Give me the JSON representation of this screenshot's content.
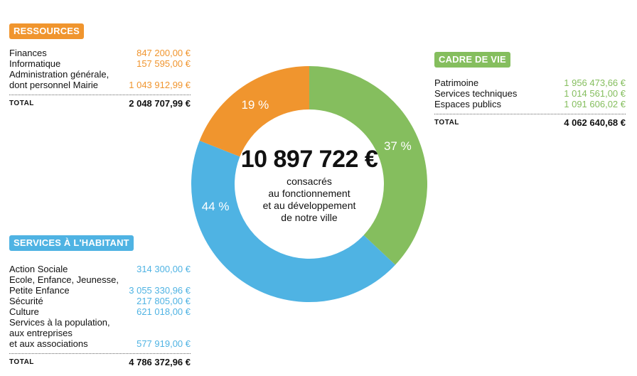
{
  "colors": {
    "orange": "#F0952E",
    "green": "#85BE5E",
    "blue": "#4FB3E3"
  },
  "chart_data": {
    "type": "pie",
    "donut": true,
    "center_value": "10 897 722 €",
    "center_text": "consacrés\nau fonctionnement\net au développement\nde notre ville",
    "slices": [
      {
        "name": "CADRE DE VIE",
        "value": 37,
        "label": "37 %",
        "color": "#85BE5E"
      },
      {
        "name": "SERVICES À L'HABITANT",
        "value": 44,
        "label": "44 %",
        "color": "#4FB3E3"
      },
      {
        "name": "RESSOURCES",
        "value": 19,
        "label": "19 %",
        "color": "#F0952E"
      }
    ]
  },
  "ressources": {
    "title": "RESSOURCES",
    "items": [
      {
        "label": "Finances",
        "value": "847 200,00 €"
      },
      {
        "label": "Informatique",
        "value": "157 595,00 €"
      },
      {
        "label": "Administration générale,\ndont personnel Mairie",
        "value": "1 043 912,99 €"
      }
    ],
    "total_label": "TOTAL",
    "total_value": "2 048 707,99 €"
  },
  "cadre": {
    "title": "CADRE DE VIE",
    "items": [
      {
        "label": "Patrimoine",
        "value": "1 956 473,66 €"
      },
      {
        "label": "Services techniques",
        "value": "1 014 561,00 €"
      },
      {
        "label": "Espaces publics",
        "value": "1 091 606,02 €"
      }
    ],
    "total_label": "TOTAL",
    "total_value": "4 062 640,68 €"
  },
  "services": {
    "title": "SERVICES À L'HABITANT",
    "items": [
      {
        "label": "Action Sociale",
        "value": "314 300,00 €"
      },
      {
        "label": "Ecole, Enfance, Jeunesse,\nPetite Enfance",
        "value": "3 055 330,96 €"
      },
      {
        "label": "Sécurité",
        "value": "217 805,00 €"
      },
      {
        "label": "Culture",
        "value": "621 018,00 €"
      },
      {
        "label": "Services à la population,\naux entreprises\net aux associations",
        "value": "577 919,00 €"
      }
    ],
    "total_label": "TOTAL",
    "total_value": "4 786 372,96 €"
  }
}
